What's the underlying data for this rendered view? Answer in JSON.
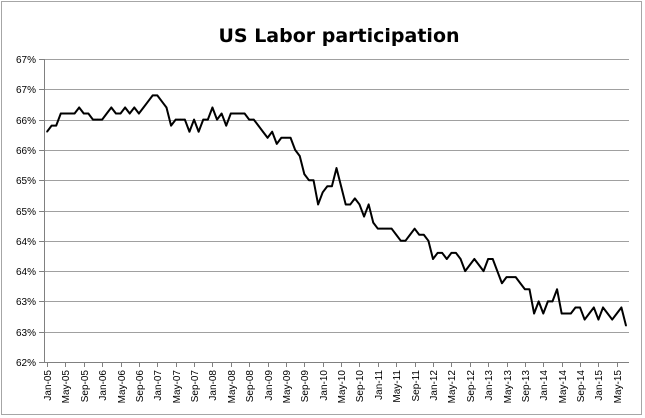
{
  "chart_data": {
    "type": "line",
    "title": "US Labor participation",
    "xlabel": "",
    "ylabel": "",
    "y_tick_labels": [
      "62%",
      "63%",
      "63%",
      "64%",
      "64%",
      "65%",
      "65%",
      "66%",
      "66%",
      "67%",
      "67%"
    ],
    "ylim": [
      62.0,
      67.0
    ],
    "x_tick_labels": [
      "Jan-05",
      "May-05",
      "Sep-05",
      "Jan-06",
      "May-06",
      "Sep-06",
      "Jan-07",
      "May-07",
      "Sep-07",
      "Jan-08",
      "May-08",
      "Sep-08",
      "Jan-09",
      "May-09",
      "Sep-09",
      "Jan-10",
      "May-10",
      "Sep-10",
      "Jan-11",
      "May-11",
      "Sep-11",
      "Jan-12",
      "May-12",
      "Sep-12",
      "Jan-13",
      "May-13",
      "Sep-13",
      "Jan-14",
      "May-14",
      "Sep-14",
      "Jan-15",
      "May-15"
    ],
    "grid": true,
    "legend": "none",
    "line_color": "#000000",
    "series": [
      {
        "values": [
          65.8,
          65.9,
          65.9,
          66.1,
          66.1,
          66.1,
          66.1,
          66.2,
          66.1,
          66.1,
          66.0,
          66.0,
          66.0,
          66.1,
          66.2,
          66.1,
          66.1,
          66.2,
          66.1,
          66.2,
          66.1,
          66.2,
          66.3,
          66.4,
          66.4,
          66.3,
          66.2,
          65.9,
          66.0,
          66.0,
          66.0,
          65.8,
          66.0,
          65.8,
          66.0,
          66.0,
          66.2,
          66.0,
          66.1,
          65.9,
          66.1,
          66.1,
          66.1,
          66.1,
          66.0,
          66.0,
          65.9,
          65.8,
          65.7,
          65.8,
          65.6,
          65.7,
          65.7,
          65.7,
          65.5,
          65.4,
          65.1,
          65.0,
          65.0,
          64.6,
          64.8,
          64.9,
          64.9,
          65.2,
          64.9,
          64.6,
          64.6,
          64.7,
          64.6,
          64.4,
          64.6,
          64.3,
          64.2,
          64.2,
          64.2,
          64.2,
          64.1,
          64.0,
          64.0,
          64.1,
          64.2,
          64.1,
          64.1,
          64.0,
          63.7,
          63.8,
          63.8,
          63.7,
          63.8,
          63.8,
          63.7,
          63.5,
          63.6,
          63.7,
          63.6,
          63.5,
          63.7,
          63.7,
          63.5,
          63.3,
          63.4,
          63.4,
          63.4,
          63.3,
          63.2,
          63.2,
          62.8,
          63.0,
          62.8,
          63.0,
          63.0,
          63.2,
          62.8,
          62.8,
          62.8,
          62.9,
          62.9,
          62.7,
          62.8,
          62.9,
          62.7,
          62.9,
          62.8,
          62.7,
          62.8,
          62.9,
          62.6
        ]
      }
    ]
  }
}
